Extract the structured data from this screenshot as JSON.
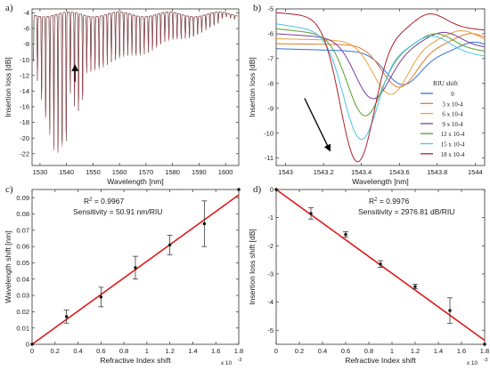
{
  "chart_data": [
    {
      "panel": "a)",
      "type": "line",
      "xlabel": "Wavelength [nm]",
      "ylabel": "Insertion loss [dB]",
      "xlim": [
        1527,
        1605
      ],
      "ylim": [
        -23.5,
        -3.5
      ],
      "xticks": [
        1530,
        1540,
        1550,
        1560,
        1570,
        1580,
        1590,
        1600
      ],
      "yticks": [
        -4,
        -6,
        -8,
        -10,
        -12,
        -14,
        -16,
        -18,
        -20,
        -22
      ],
      "annotation": "upward arrow near 1543 nm",
      "series_colors": [
        "#3a6fd8",
        "#e07a2c",
        "#d4b21e",
        "#7a3f9a",
        "#5a9e2f",
        "#49c4e6",
        "#b0202f"
      ]
    },
    {
      "panel": "b)",
      "type": "line",
      "xlabel": "Wavelength [nm]",
      "ylabel": "Insertion loss [dB]",
      "xlim": [
        1542.95,
        1544.05
      ],
      "ylim": [
        -11.3,
        -5.0
      ],
      "xticks": [
        1543,
        1543.2,
        1543.4,
        1543.6,
        1543.8,
        1544
      ],
      "yticks": [
        -5,
        -6,
        -7,
        -8,
        -9,
        -10,
        -11
      ],
      "legend_title": "RIU shift",
      "legend_position": "right",
      "series": [
        {
          "name": "0",
          "color": "#3a6fd8",
          "dip_x": 1543.62,
          "dip_y": -8.05,
          "left_y": -6.6,
          "right_y": -6.85,
          "shoulder_y": -7.7
        },
        {
          "name": "3 x 10-4",
          "color": "#e07a2c",
          "dip_x": 1543.6,
          "dip_y": -8.15,
          "left_y": -6.4,
          "right_y": -6.5,
          "shoulder_y": -8.0
        },
        {
          "name": "6 x 10-4",
          "color": "#e8a23a",
          "dip_x": 1543.55,
          "dip_y": -8.35,
          "left_y": -6.2,
          "right_y": -6.4,
          "shoulder_y": -8.2
        },
        {
          "name": "9 x 10-4",
          "color": "#7a3f9a",
          "dip_x": 1543.46,
          "dip_y": -8.6,
          "left_y": -6.0,
          "right_y": -6.55,
          "shoulder_y": -8.5
        },
        {
          "name": "12 x 10-4",
          "color": "#5a9e2f",
          "dip_x": 1543.42,
          "dip_y": -9.3,
          "left_y": -5.8,
          "right_y": -6.7,
          "shoulder_y": -8.9
        },
        {
          "name": "15 x 10-4",
          "color": "#49c4e6",
          "dip_x": 1543.4,
          "dip_y": -10.25,
          "left_y": -5.6,
          "right_y": -6.9,
          "shoulder_y": -9.2
        },
        {
          "name": "18 x 10-4",
          "color": "#b0202f",
          "dip_x": 1543.38,
          "dip_y": -11.15,
          "left_y": -5.15,
          "right_y": -5.85,
          "shoulder_y": -9.4
        }
      ],
      "annotation": "arrow pointing down-right along dip shift"
    },
    {
      "panel": "c)",
      "type": "scatter",
      "xlabel": "Refractive Index shift",
      "ylabel": "Wavelength shift [nm]",
      "x_multiplier": "x 10",
      "x_multiplier_exp": "-3",
      "xlim": [
        0,
        1.8
      ],
      "ylim": [
        0,
        0.095
      ],
      "xticks": [
        0,
        0.2,
        0.4,
        0.6,
        0.8,
        1,
        1.2,
        1.4,
        1.6,
        1.8
      ],
      "xtick_labels": [
        "0",
        "0.2",
        "0.4",
        "0.6",
        "0.8",
        "1",
        "1.2",
        "1.4",
        "1.6",
        "1.8"
      ],
      "yticks": [
        0,
        0.01,
        0.02,
        0.03,
        0.04,
        0.05,
        0.06,
        0.07,
        0.08,
        0.09
      ],
      "ytick_labels": [
        "0",
        "0.01",
        "0.02",
        "0.03",
        "0.04",
        "0.05",
        "0.06",
        "0.07",
        "0.08",
        "0.09"
      ],
      "points": [
        {
          "x": 0,
          "y": 0,
          "err": 0
        },
        {
          "x": 0.3,
          "y": 0.017,
          "err": 0.004
        },
        {
          "x": 0.6,
          "y": 0.029,
          "err": 0.006
        },
        {
          "x": 0.9,
          "y": 0.047,
          "err": 0.007
        },
        {
          "x": 1.2,
          "y": 0.061,
          "err": 0.006
        },
        {
          "x": 1.5,
          "y": 0.074,
          "err": 0.014
        },
        {
          "x": 1.8,
          "y": 0.095,
          "err": 0
        }
      ],
      "fit": {
        "x": [
          0,
          1.8
        ],
        "y": [
          0,
          0.0917
        ]
      },
      "fit_color": "#e01b1b",
      "r2_label": "R",
      "r2_exp": "2",
      "r2_value": " = 0.9967",
      "sensitivity": "Sensitivity = 50.91 nm/RIU"
    },
    {
      "panel": "d)",
      "type": "scatter",
      "xlabel": "Refractive Index shift",
      "ylabel": "Insertion loss shift [dB]",
      "x_multiplier": "x 10",
      "x_multiplier_exp": "-3",
      "xlim": [
        0,
        1.8
      ],
      "ylim": [
        -5.5,
        0
      ],
      "xticks": [
        0,
        0.2,
        0.4,
        0.6,
        0.8,
        1,
        1.2,
        1.4,
        1.6,
        1.8
      ],
      "xtick_labels": [
        "0",
        "0.2",
        "0.4",
        "0.6",
        "0.8",
        "1",
        "1.2",
        "1.4",
        "1.6",
        "1.8"
      ],
      "yticks": [
        0,
        -1,
        -2,
        -3,
        -4,
        -5
      ],
      "ytick_labels": [
        "0",
        "-1",
        "-2",
        "-3",
        "-4",
        "-5"
      ],
      "points": [
        {
          "x": 0,
          "y": 0,
          "err": 0
        },
        {
          "x": 0.3,
          "y": -0.85,
          "err": 0.2
        },
        {
          "x": 0.6,
          "y": -1.6,
          "err": 0.1
        },
        {
          "x": 0.9,
          "y": -2.65,
          "err": 0.12
        },
        {
          "x": 1.2,
          "y": -3.45,
          "err": 0.08
        },
        {
          "x": 1.5,
          "y": -4.3,
          "err": 0.45
        },
        {
          "x": 1.8,
          "y": -5.5,
          "err": 0
        }
      ],
      "fit": {
        "x": [
          0,
          1.8
        ],
        "y": [
          0,
          -5.36
        ]
      },
      "fit_color": "#e01b1b",
      "r2_label": "R",
      "r2_exp": "2",
      "r2_value": " = 0.9976",
      "sensitivity": "Sensitivity = 2976.81 dB/RIU"
    }
  ]
}
